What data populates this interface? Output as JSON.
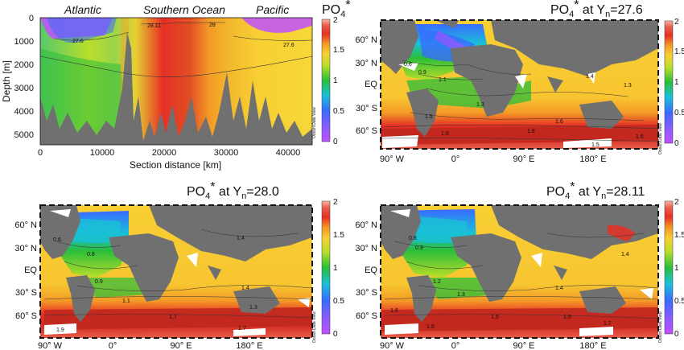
{
  "chart_data": [
    {
      "type": "heatmap",
      "panel": "section",
      "title": "PO4*",
      "xlabel": "Section distance [km]",
      "ylabel": "Depth [m]",
      "xlim": [
        0,
        44000
      ],
      "ylim": [
        0,
        5500
      ],
      "xticks": [
        "0",
        "10000",
        "20000",
        "30000",
        "40000"
      ],
      "yticks": [
        "0",
        "1000",
        "2000",
        "3000",
        "4000",
        "5000"
      ],
      "region_labels": [
        "Atlantic",
        "Southern Ocean",
        "Pacific"
      ],
      "contour_labels": [
        "27.6",
        "28.11",
        "28",
        "27.6"
      ],
      "colorbar": {
        "min": 0,
        "max": 2,
        "ticks": [
          "0",
          "0.5",
          "1",
          "1.5",
          "2"
        ]
      },
      "credit": "Ocean Data View"
    },
    {
      "type": "heatmap",
      "panel": "map",
      "title": "PO4* at Yn=27.6",
      "lat_ticks": [
        "60° N",
        "30° N",
        "EQ",
        "30° S",
        "60° S"
      ],
      "lon_ticks": [
        "90° W",
        "0°",
        "90° E",
        "180° E"
      ],
      "contour_labels": [
        "0.6",
        "0.9",
        "1.1",
        "1.3",
        "1.4",
        "1.3",
        "1.5",
        "1.6",
        "1.8",
        "1.8",
        "1.5",
        "1.6"
      ],
      "colorbar": {
        "min": 0,
        "max": 2,
        "ticks": [
          "0",
          "0.5",
          "1",
          "1.5",
          "2"
        ]
      },
      "credit": "Ocean Data View"
    },
    {
      "type": "heatmap",
      "panel": "map",
      "title": "PO4* at Yn=28.0",
      "lat_ticks": [
        "60° N",
        "30° N",
        "EQ",
        "30° S",
        "60° S"
      ],
      "lon_ticks": [
        "90° W",
        "0°",
        "90° E",
        "180° E"
      ],
      "contour_labels": [
        "0.6",
        "0.8",
        "0.9",
        "1.1",
        "1.3",
        "1.4",
        "1.4",
        "1.7",
        "1.7",
        "1.9"
      ],
      "colorbar": {
        "min": 0,
        "max": 2,
        "ticks": [
          "0",
          "0.5",
          "1",
          "1.5",
          "2"
        ]
      },
      "credit": "Ocean Data View"
    },
    {
      "type": "heatmap",
      "panel": "map",
      "title": "PO4* at Yn=28.11",
      "lat_ticks": [
        "60° N",
        "30° N",
        "EQ",
        "30° S",
        "60° S"
      ],
      "lon_ticks": [
        "90° W",
        "0°",
        "90° E",
        "180° E"
      ],
      "contour_labels": [
        "0.8",
        "0.9",
        "1.2",
        "1.3",
        "1.4",
        "1.4",
        "1.5",
        "1.5",
        "1.6",
        "1.7",
        "1.8"
      ],
      "colorbar": {
        "min": 0,
        "max": 2,
        "ticks": [
          "0",
          "0.5",
          "1",
          "1.5",
          "2"
        ]
      },
      "credit": "Ocean Data View"
    }
  ],
  "style": {
    "land": "#707070",
    "colormap": [
      "#c050ff",
      "#3a6bff",
      "#19c1d6",
      "#2bbd3a",
      "#b9de2a",
      "#f8cf33",
      "#f39a26",
      "#e63025",
      "#c0281e",
      "#fbb6a2"
    ],
    "background": "#ffffff"
  }
}
